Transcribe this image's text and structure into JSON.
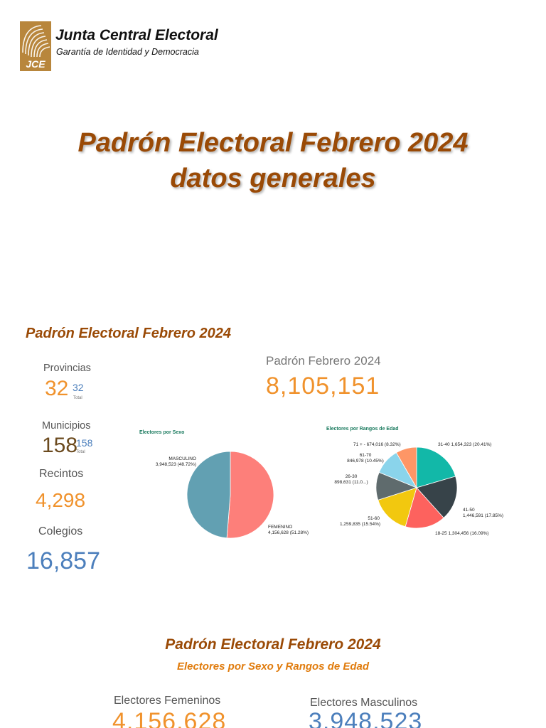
{
  "header": {
    "logo_text": "JCE",
    "org_name": "Junta Central Electoral",
    "tagline": "Garantía de Identidad y Democracia"
  },
  "main_title": {
    "line1": "Padrón Electoral Febrero 2024",
    "line2": "datos generales"
  },
  "section1": {
    "title": "Padrón Electoral Febrero 2024",
    "stats": {
      "provincias": {
        "label": "Provincias",
        "value": "32",
        "sub": "32",
        "total": "Total"
      },
      "municipios": {
        "label": "Municipios",
        "value": "158",
        "sub": "158",
        "total": "Total"
      },
      "recintos": {
        "label": "Recintos",
        "value": "4,298"
      },
      "colegios": {
        "label": "Colegios",
        "value": "16,857"
      }
    },
    "padron": {
      "label": "Padrón Febrero 2024",
      "value": "8,105,151"
    }
  },
  "chart_data": [
    {
      "type": "pie",
      "title": "Electores por Sexo",
      "categories": [
        "FEMENINO",
        "MASCULINO"
      ],
      "values": [
        4156628,
        3948523
      ],
      "labels": [
        "4,156,628 (51.28%)",
        "3,948,523 (48.72%)"
      ],
      "colors": [
        "#fd7f7a",
        "#62a0b2"
      ]
    },
    {
      "type": "pie",
      "title": "Electores por Rangos de Edad",
      "categories": [
        "31-40",
        "41-50",
        "18-25",
        "51-60",
        "26-30",
        "61-70",
        "71 +"
      ],
      "values": [
        1654323,
        1446591,
        1304456,
        1259835,
        898631,
        846978,
        674016
      ],
      "labels": [
        "1,654,323 (20.41%)",
        "1,446,591 (17.85%)",
        "1,304,456 (16.09%)",
        "1,259,835 (15.54%)",
        "898,631 (11.0...)",
        "846,978 (10.45%)",
        "674,016 (8.32%)"
      ],
      "colors": [
        "#12b8a8",
        "#374349",
        "#fd625e",
        "#f2c80f",
        "#5f6b6d",
        "#8ad4eb",
        "#fe9666"
      ]
    }
  ],
  "section2": {
    "title": "Padrón Electoral Febrero 2024",
    "subtitle": "Electores por Sexo y Rangos de Edad",
    "femeninos": {
      "label": "Electores Femeninos",
      "value": "4,156,628"
    },
    "masculinos": {
      "label": "Electores Masculinos",
      "value": "3,948,523"
    }
  },
  "colors": {
    "title_brown": "#9a4a06",
    "accent_orange": "#f0922c",
    "accent_blue": "#4c7fbc",
    "logo_gold": "#b8863c"
  }
}
